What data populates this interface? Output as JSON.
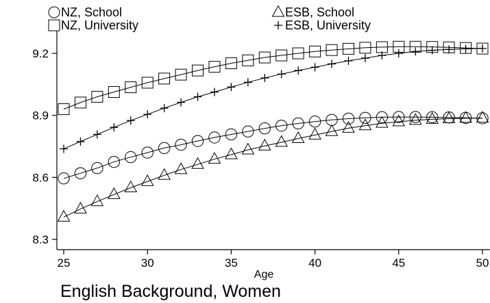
{
  "chart_data": {
    "type": "line",
    "title": "",
    "caption": "English Background, Women",
    "xlabel": "Age",
    "ylabel": "",
    "xlim": [
      25,
      50
    ],
    "ylim": [
      8.3,
      9.3
    ],
    "x_ticks": [
      25,
      30,
      35,
      40,
      45,
      50
    ],
    "y_ticks": [
      8.3,
      8.6,
      8.9,
      9.2
    ],
    "x_tick_labels": [
      "25",
      "30",
      "35",
      "40",
      "45",
      "50"
    ],
    "y_tick_labels": [
      "8.3",
      "8.6",
      "8.9",
      "9.2"
    ],
    "grid": false,
    "legend_position": "top",
    "x": [
      25,
      26,
      27,
      28,
      29,
      30,
      31,
      32,
      33,
      34,
      35,
      36,
      37,
      38,
      39,
      40,
      41,
      42,
      43,
      44,
      45,
      46,
      47,
      48,
      49,
      50
    ],
    "series": [
      {
        "name": "NZ, School",
        "marker": "circle",
        "values": [
          8.595,
          8.62,
          8.645,
          8.675,
          8.698,
          8.72,
          8.742,
          8.758,
          8.776,
          8.793,
          8.808,
          8.822,
          8.837,
          8.85,
          8.861,
          8.87,
          8.878,
          8.884,
          8.888,
          8.891,
          8.892,
          8.892,
          8.891,
          8.89,
          8.888,
          8.886
        ]
      },
      {
        "name": "NZ, University",
        "marker": "square",
        "values": [
          8.93,
          8.962,
          8.99,
          9.013,
          9.036,
          9.058,
          9.078,
          9.097,
          9.117,
          9.135,
          9.152,
          9.166,
          9.18,
          9.19,
          9.2,
          9.209,
          9.216,
          9.222,
          9.227,
          9.23,
          9.232,
          9.232,
          9.231,
          9.229,
          9.226,
          9.223
        ]
      },
      {
        "name": "ESB, School",
        "marker": "triangle",
        "values": [
          8.408,
          8.447,
          8.483,
          8.517,
          8.55,
          8.58,
          8.61,
          8.638,
          8.663,
          8.688,
          8.71,
          8.733,
          8.752,
          8.77,
          8.788,
          8.805,
          8.822,
          8.838,
          8.85,
          8.862,
          8.869,
          8.876,
          8.881,
          8.884,
          8.886,
          8.887
        ]
      },
      {
        "name": "ESB, University",
        "marker": "plus",
        "values": [
          8.738,
          8.773,
          8.808,
          8.842,
          8.875,
          8.905,
          8.935,
          8.963,
          8.99,
          9.013,
          9.037,
          9.06,
          9.081,
          9.1,
          9.117,
          9.133,
          9.149,
          9.164,
          9.177,
          9.19,
          9.2,
          9.209,
          9.215,
          9.219,
          9.222,
          9.224
        ]
      }
    ]
  }
}
